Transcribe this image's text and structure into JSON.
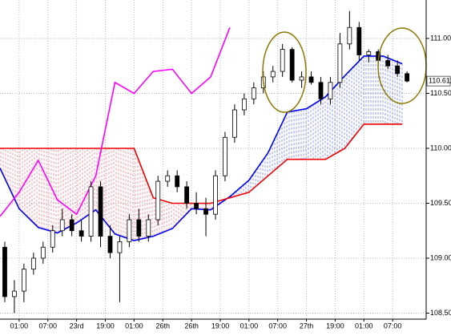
{
  "chart_data": {
    "type": "candlestick",
    "xlim": [
      0,
      89
    ],
    "ylim": [
      108.445,
      111.35
    ],
    "grid": true,
    "current_price": 110.612,
    "yticks": [
      {
        "value": 108.5,
        "label": "108.500"
      },
      {
        "value": 109,
        "label": "109.000"
      },
      {
        "value": 109.5,
        "label": "109.500"
      },
      {
        "value": 110,
        "label": "110.000"
      },
      {
        "value": 110.5,
        "label": "110.500"
      },
      {
        "value": 111,
        "label": "111.000"
      }
    ],
    "xticks": [
      {
        "value": 4,
        "label": "01:00"
      },
      {
        "value": 10,
        "label": "07:00"
      },
      {
        "value": 16,
        "label": "23rd"
      },
      {
        "value": 22,
        "label": "19:00"
      },
      {
        "value": 28,
        "label": "01:00"
      },
      {
        "value": 34,
        "label": "26th"
      },
      {
        "value": 40,
        "label": "26th"
      },
      {
        "value": 46,
        "label": "19:00"
      },
      {
        "value": 52,
        "label": "01:00"
      },
      {
        "value": 58,
        "label": "07:00"
      },
      {
        "value": 64,
        "label": "27th"
      },
      {
        "value": 70,
        "label": "19:00"
      },
      {
        "value": 76,
        "label": "01:00"
      },
      {
        "value": 82,
        "label": "07:00"
      }
    ],
    "candles": {
      "x": [
        1,
        3,
        5,
        7,
        9,
        11,
        13,
        15,
        17,
        19,
        21,
        23,
        25,
        27,
        29,
        31,
        33,
        35,
        37,
        39,
        41,
        43,
        45,
        47,
        49,
        51,
        53,
        55,
        57,
        59,
        61,
        63,
        65,
        67,
        69,
        71,
        73,
        75,
        77,
        79,
        81,
        83,
        85
      ],
      "open": [
        109.1,
        108.65,
        108.7,
        108.9,
        109.0,
        109.1,
        109.25,
        109.35,
        109.25,
        109.2,
        109.65,
        109.2,
        109.05,
        109.15,
        109.35,
        109.2,
        109.35,
        109.7,
        109.75,
        109.65,
        109.5,
        109.45,
        109.4,
        109.75,
        110.1,
        110.35,
        110.45,
        110.55,
        110.65,
        110.7,
        110.9,
        110.62,
        110.65,
        110.6,
        110.45,
        110.6,
        110.95,
        111.1,
        110.85,
        110.88,
        110.8,
        110.75,
        110.68
      ],
      "high": [
        109.15,
        108.8,
        108.95,
        109.05,
        109.15,
        109.3,
        109.45,
        109.4,
        109.35,
        109.7,
        109.7,
        109.3,
        109.2,
        109.4,
        109.45,
        109.4,
        109.75,
        109.8,
        109.8,
        109.7,
        109.6,
        109.55,
        109.8,
        110.15,
        110.4,
        110.5,
        110.6,
        110.7,
        110.75,
        110.95,
        110.92,
        110.7,
        110.7,
        110.65,
        110.65,
        111.05,
        111.25,
        111.15,
        110.9,
        110.9,
        110.85,
        110.8,
        110.7
      ],
      "low": [
        108.6,
        108.5,
        108.6,
        108.85,
        108.95,
        109.05,
        109.2,
        109.2,
        109.15,
        109.15,
        109.1,
        109.0,
        108.6,
        109.1,
        109.15,
        109.15,
        109.3,
        109.65,
        109.6,
        109.45,
        109.4,
        109.2,
        109.35,
        109.7,
        110.05,
        110.3,
        110.4,
        110.5,
        110.6,
        110.65,
        110.6,
        110.55,
        110.58,
        110.4,
        110.4,
        110.55,
        110.9,
        110.8,
        110.78,
        110.75,
        110.72,
        110.65,
        110.6
      ],
      "close": [
        108.65,
        108.7,
        108.9,
        109.0,
        109.1,
        109.25,
        109.35,
        109.25,
        109.2,
        109.65,
        109.2,
        109.05,
        109.15,
        109.35,
        109.2,
        109.35,
        109.7,
        109.75,
        109.65,
        109.5,
        109.45,
        109.4,
        109.75,
        110.1,
        110.35,
        110.45,
        110.55,
        110.65,
        110.7,
        110.9,
        110.62,
        110.65,
        110.6,
        110.45,
        110.6,
        110.95,
        111.1,
        110.85,
        110.88,
        110.8,
        110.75,
        110.68,
        110.612
      ]
    },
    "lines": [
      {
        "color": "#0000ee",
        "x": [
          0,
          4,
          8,
          12,
          16,
          20,
          24,
          28,
          32,
          36,
          40,
          44,
          48,
          52,
          56,
          60,
          64,
          68,
          72,
          76,
          80,
          84
        ],
        "values": [
          109.82,
          109.45,
          109.28,
          109.23,
          109.32,
          109.44,
          109.22,
          109.16,
          109.2,
          109.27,
          109.45,
          109.44,
          109.56,
          109.71,
          109.96,
          110.33,
          110.36,
          110.47,
          110.66,
          110.84,
          110.84,
          110.77
        ]
      },
      {
        "color": "#ee0000",
        "x": [
          0,
          4,
          8,
          12,
          16,
          20,
          24,
          28,
          32,
          36,
          40,
          44,
          48,
          52,
          56,
          60,
          64,
          68,
          72,
          76,
          80,
          84
        ],
        "values": [
          110.0,
          110.0,
          110.0,
          110.0,
          110.0,
          110.0,
          110.0,
          110.0,
          109.55,
          109.5,
          109.5,
          109.5,
          109.55,
          109.6,
          109.75,
          109.9,
          109.9,
          109.9,
          110.0,
          110.22,
          110.22,
          110.22
        ]
      },
      {
        "color": "#ff00ff",
        "x": [
          0,
          4,
          8,
          12,
          16,
          20,
          24,
          28,
          32,
          36,
          40,
          44,
          48
        ],
        "values": [
          109.38,
          109.6,
          109.89,
          109.53,
          109.4,
          109.75,
          110.6,
          110.5,
          110.7,
          110.72,
          110.5,
          110.65,
          111.1
        ]
      }
    ]
  }
}
